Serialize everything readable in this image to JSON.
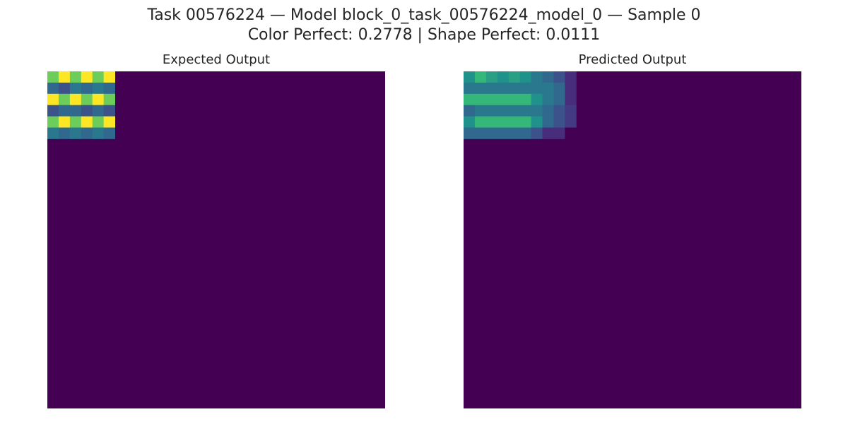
{
  "figure": {
    "title_line1": "Task 00576224 — Model block_0_task_00576224_model_0 — Sample 0",
    "title_line2": "Color Perfect: 0.2778 | Shape Perfect: 0.0111"
  },
  "chart_data": [
    {
      "type": "heatmap",
      "title": "Expected Output",
      "colormap": "viridis",
      "background": "#440154",
      "grid_rows": 30,
      "grid_cols": 30,
      "grid": false,
      "axes": "off",
      "patch": [
        [
          "#6ccd5a",
          "#fde725",
          "#6ccd5a",
          "#fde725",
          "#6ccd5a",
          "#fde725"
        ],
        [
          "#31688e",
          "#3b528b",
          "#2a788e",
          "#31688e",
          "#2a788e",
          "#31688e"
        ],
        [
          "#fde725",
          "#6ccd5a",
          "#fde725",
          "#6ccd5a",
          "#fde725",
          "#6ccd5a"
        ],
        [
          "#3b528b",
          "#31688e",
          "#31688e",
          "#3b528b",
          "#31688e",
          "#3b528b"
        ],
        [
          "#6ccd5a",
          "#fde725",
          "#6ccd5a",
          "#fde725",
          "#6ccd5a",
          "#fde725"
        ],
        [
          "#2a788e",
          "#31688e",
          "#2a788e",
          "#31688e",
          "#2a788e",
          "#31688e"
        ]
      ]
    },
    {
      "type": "heatmap",
      "title": "Predicted Output",
      "colormap": "viridis",
      "background": "#440154",
      "grid_rows": 30,
      "grid_cols": 30,
      "grid": false,
      "axes": "off",
      "patch": [
        [
          "#21918c",
          "#35b779",
          "#2a9f86",
          "#21918c",
          "#2a9f86",
          "#21918c",
          "#2a788e",
          "#31688e",
          "#3b528b",
          "#472d7b"
        ],
        [
          "#2a788e",
          "#2a788e",
          "#2a788e",
          "#2a788e",
          "#2a788e",
          "#2a788e",
          "#2a788e",
          "#2a788e",
          "#31688e",
          "#472d7b"
        ],
        [
          "#35b779",
          "#35b779",
          "#35b779",
          "#35b779",
          "#35b779",
          "#35b779",
          "#21918c",
          "#2a788e",
          "#31688e",
          "#472d7b"
        ],
        [
          "#31688e",
          "#2a788e",
          "#2a788e",
          "#2a788e",
          "#2a788e",
          "#2a788e",
          "#2a788e",
          "#31688e",
          "#3b528b",
          "#443983"
        ],
        [
          "#21918c",
          "#35b779",
          "#35b779",
          "#35b779",
          "#35b779",
          "#35b779",
          "#21918c",
          "#31688e",
          "#3b528b",
          "#443983"
        ],
        [
          "#31688e",
          "#31688e",
          "#31688e",
          "#31688e",
          "#31688e",
          "#31688e",
          "#3b528b",
          "#472d7b",
          "#472d7b",
          "#440154"
        ]
      ]
    }
  ]
}
